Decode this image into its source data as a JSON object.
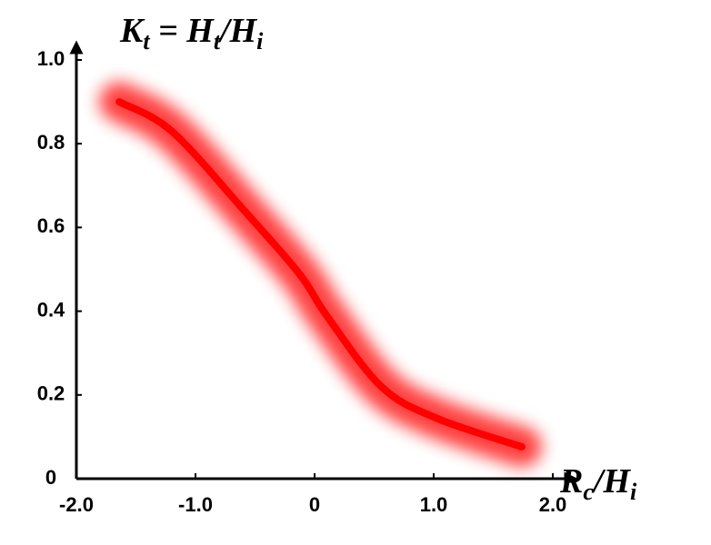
{
  "chart_data": {
    "type": "line",
    "ylabel_parts": [
      "K",
      "t",
      " = H",
      "t",
      "/H",
      "i"
    ],
    "xlabel_parts": [
      "R",
      "c",
      "/H",
      "i"
    ],
    "x": [
      -1.64,
      -1.2,
      -0.59,
      -0.13,
      0.1,
      0.56,
      1.02,
      1.74
    ],
    "series": [
      {
        "color": "#ff0000",
        "values": [
          0.9,
          0.83,
          0.64,
          0.49,
          0.39,
          0.22,
          0.145,
          0.076
        ]
      }
    ],
    "xlim": [
      -2,
      2
    ],
    "xticks": [
      {
        "value": -2,
        "label": "-2.0"
      },
      {
        "value": -1,
        "label": "-1.0"
      },
      0,
      {
        "value": 1,
        "label": "1.0"
      },
      {
        "value": 2,
        "label": "2.0"
      }
    ],
    "ylim": [
      0,
      1
    ],
    "yticks": [
      0,
      0.2,
      0.4,
      0.6,
      0.8,
      {
        "value": 1,
        "label": "1.0"
      }
    ],
    "glow": true
  }
}
